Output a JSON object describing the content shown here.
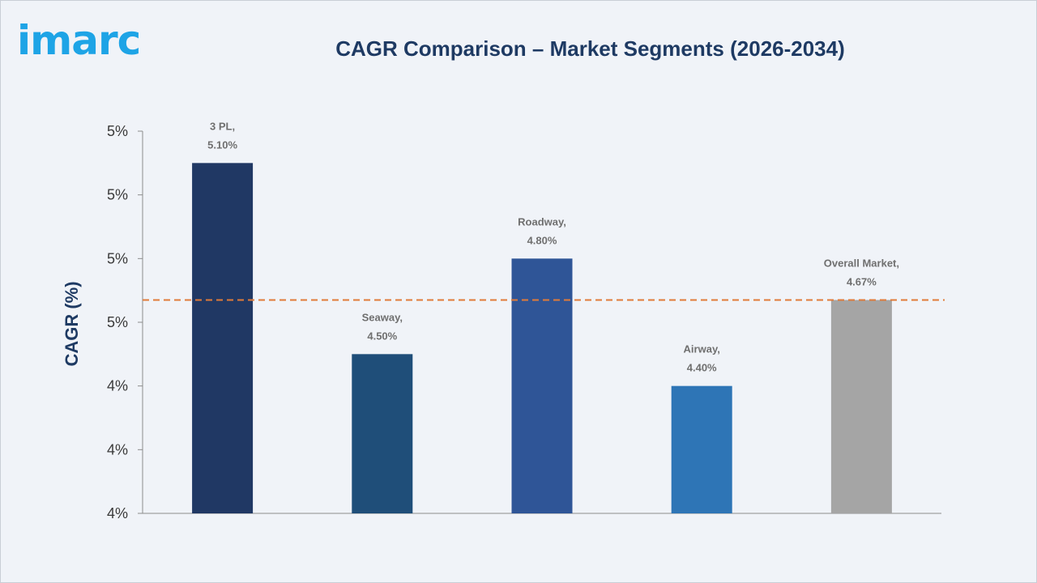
{
  "brand": {
    "logo_text": "imarc"
  },
  "colors": {
    "logo": "#1ea4e6",
    "title": "#1e3a63",
    "reference_line": "#e07b3a",
    "bars": [
      "#203864",
      "#1f4e79",
      "#2f5597",
      "#2e75b6",
      "#a5a5a5"
    ]
  },
  "chart_data": {
    "type": "bar",
    "title": "CAGR Comparison – Market Segments (2026-2034)",
    "xlabel": "",
    "ylabel": "CAGR (%)",
    "categories": [
      "3 PL",
      "Seaway",
      "Roadway",
      "Airway",
      "Overall Market"
    ],
    "values": [
      5.1,
      4.5,
      4.8,
      4.4,
      4.67
    ],
    "data_labels": [
      [
        "3 PL,",
        "5.10%"
      ],
      [
        "Seaway,",
        "4.50%"
      ],
      [
        "Roadway,",
        "4.80%"
      ],
      [
        "Airway,",
        "4.40%"
      ],
      [
        "Overall Market,",
        "4.67%"
      ]
    ],
    "ylim": [
      4.0,
      5.2
    ],
    "y_tick_values": [
      4.0,
      4.2,
      4.4,
      4.6,
      4.8,
      5.0,
      5.2
    ],
    "y_tick_labels": [
      "4%",
      "4%",
      "4%",
      "5%",
      "5%",
      "5%",
      "5%"
    ],
    "reference_line": {
      "value": 4.67,
      "style": "dashed"
    },
    "grid": false,
    "legend": "none"
  }
}
